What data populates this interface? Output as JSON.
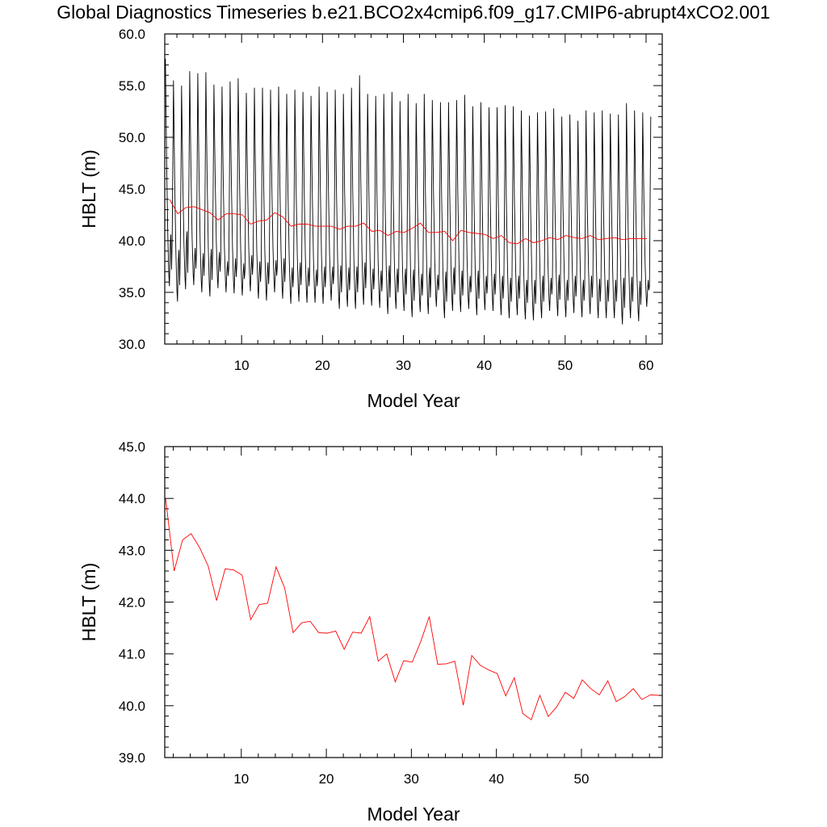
{
  "title": "Global Diagnostics Timeseries b.e21.BCO2x4cmip6.f09_g17.CMIP6-abrupt4xCO2.001",
  "chart_data": [
    {
      "type": "line",
      "xlabel": "Model Year",
      "ylabel": "HBLT (m)",
      "xlim": [
        0.5,
        62
      ],
      "ylim": [
        30,
        60
      ],
      "xticks": [
        10,
        20,
        30,
        40,
        50,
        60
      ],
      "yticks": [
        "30.0",
        "35.0",
        "40.0",
        "45.0",
        "50.0",
        "55.0",
        "60.0"
      ],
      "series": [
        {
          "color": "#000000",
          "sampling": "monthly",
          "monthly_max": [
            57.6,
            55.5,
            55.0,
            56.4,
            56.2,
            56.3,
            55.1,
            54.9,
            55.4,
            55.7,
            54.3,
            54.8,
            54.8,
            54.6,
            54.9,
            54.2,
            54.6,
            54.4,
            54.0,
            54.9,
            54.4,
            54.6,
            54.2,
            54.8,
            56.0,
            54.2,
            54.0,
            54.2,
            54.4,
            53.5,
            54.2,
            53.3,
            54.2,
            53.6,
            53.4,
            53.4,
            53.6,
            54.1,
            53.0,
            53.4,
            52.9,
            52.9,
            53.1,
            53.0,
            52.6,
            52.1,
            52.4,
            52.5,
            52.8,
            52.0,
            52.2,
            51.6,
            52.6,
            52.4,
            52.6,
            52.3,
            52.2,
            53.3,
            52.6,
            52.4
          ],
          "monthly_min": [
            35.6,
            34.1,
            35.3,
            35.7,
            35.0,
            34.6,
            35.4,
            35.0,
            34.9,
            34.7,
            35.1,
            34.4,
            34.2,
            35.0,
            34.4,
            33.9,
            34.1,
            34.0,
            34.0,
            33.9,
            34.2,
            33.4,
            33.6,
            33.4,
            33.8,
            33.7,
            33.5,
            32.9,
            33.4,
            33.2,
            32.6,
            33.1,
            32.9,
            33.6,
            32.5,
            33.2,
            33.1,
            33.4,
            32.8,
            33.3,
            33.2,
            32.8,
            32.5,
            32.8,
            32.4,
            32.3,
            32.5,
            33.2,
            32.7,
            32.6,
            33.0,
            32.6,
            32.9,
            32.5,
            32.5,
            32.5,
            31.9,
            32.5,
            32.2,
            33.6
          ],
          "secondary_peak": [
            40.6,
            39.1,
            40.9,
            39.3,
            38.8,
            39.2,
            38.9,
            38.0,
            38.3,
            37.8,
            38.6,
            38.0,
            37.9,
            38.1,
            38.3,
            37.4,
            37.9,
            37.4,
            37.2,
            37.5,
            37.5,
            37.6,
            37.4,
            37.5,
            37.9,
            37.3,
            37.1,
            37.6,
            37.3,
            37.3,
            37.2,
            36.8,
            37.4,
            36.7,
            37.0,
            37.4,
            37.1,
            36.6,
            37.1,
            36.6,
            36.8,
            36.6,
            36.4,
            36.6,
            36.2,
            36.2,
            36.6,
            36.4,
            36.7,
            36.2,
            36.6,
            36.2,
            36.6,
            36.3,
            36.2,
            36.2,
            36.4,
            36.5,
            36.1,
            36.2
          ]
        },
        {
          "color": "#ff0000",
          "sampling": "annual mean",
          "x": [
            1,
            2,
            3,
            4,
            5,
            6,
            7,
            8,
            9,
            10,
            11,
            12,
            13,
            14,
            15,
            16,
            17,
            18,
            19,
            20,
            21,
            22,
            23,
            24,
            25,
            26,
            27,
            28,
            29,
            30,
            31,
            32,
            33,
            34,
            35,
            36,
            37,
            38,
            39,
            40,
            41,
            42,
            43,
            44,
            45,
            46,
            47,
            48,
            49,
            50,
            51,
            52,
            53,
            54,
            55,
            56,
            57,
            58,
            59,
            60
          ],
          "values": [
            44.0,
            42.6,
            43.2,
            43.3,
            43.0,
            42.7,
            42.0,
            42.6,
            42.6,
            42.5,
            41.6,
            41.9,
            42.0,
            42.7,
            42.3,
            41.4,
            41.6,
            41.6,
            41.4,
            41.4,
            41.4,
            41.1,
            41.4,
            41.4,
            41.7,
            40.9,
            41.0,
            40.5,
            40.9,
            40.8,
            41.2,
            41.7,
            40.8,
            40.8,
            40.9,
            40.0,
            41.0,
            40.8,
            40.7,
            40.6,
            40.2,
            40.5,
            39.8,
            39.7,
            40.2,
            39.8,
            40.0,
            40.3,
            40.1,
            40.5,
            40.3,
            40.2,
            40.5,
            40.1,
            40.2,
            40.3,
            40.1,
            40.2,
            40.2,
            40.2
          ]
        }
      ]
    },
    {
      "type": "line",
      "xlabel": "Model Year",
      "ylabel": "HBLT (m)",
      "xlim": [
        1,
        59.5
      ],
      "ylim": [
        39,
        45
      ],
      "xticks": [
        10,
        20,
        30,
        40,
        50
      ],
      "yticks": [
        "39.0",
        "40.0",
        "41.0",
        "42.0",
        "43.0",
        "44.0",
        "45.0"
      ],
      "series": [
        {
          "color": "#ff0000",
          "sampling": "annual mean",
          "x": [
            1,
            2,
            3,
            4,
            5,
            6,
            7,
            8,
            9,
            10,
            11,
            12,
            13,
            14,
            15,
            16,
            17,
            18,
            19,
            20,
            21,
            22,
            23,
            24,
            25,
            26,
            27,
            28,
            29,
            30,
            31,
            32,
            33,
            34,
            35,
            36,
            37,
            38,
            39,
            40,
            41,
            42,
            43,
            44,
            45,
            46,
            47,
            48,
            49,
            50,
            51,
            52,
            53,
            54,
            55,
            56,
            57,
            58,
            59,
            60
          ],
          "values": [
            44.0,
            42.6,
            43.2,
            43.32,
            43.05,
            42.7,
            42.03,
            42.64,
            42.62,
            42.52,
            41.66,
            41.95,
            41.98,
            42.68,
            42.27,
            41.41,
            41.6,
            41.63,
            41.41,
            41.4,
            41.44,
            41.09,
            41.42,
            41.4,
            41.72,
            40.86,
            41.0,
            40.46,
            40.87,
            40.84,
            41.24,
            41.72,
            40.8,
            40.81,
            40.86,
            40.01,
            40.97,
            40.78,
            40.69,
            40.62,
            40.19,
            40.54,
            39.85,
            39.73,
            40.2,
            39.79,
            39.98,
            40.26,
            40.14,
            40.5,
            40.33,
            40.21,
            40.48,
            40.08,
            40.18,
            40.33,
            40.12,
            40.21,
            40.2,
            40.2
          ]
        }
      ]
    }
  ]
}
